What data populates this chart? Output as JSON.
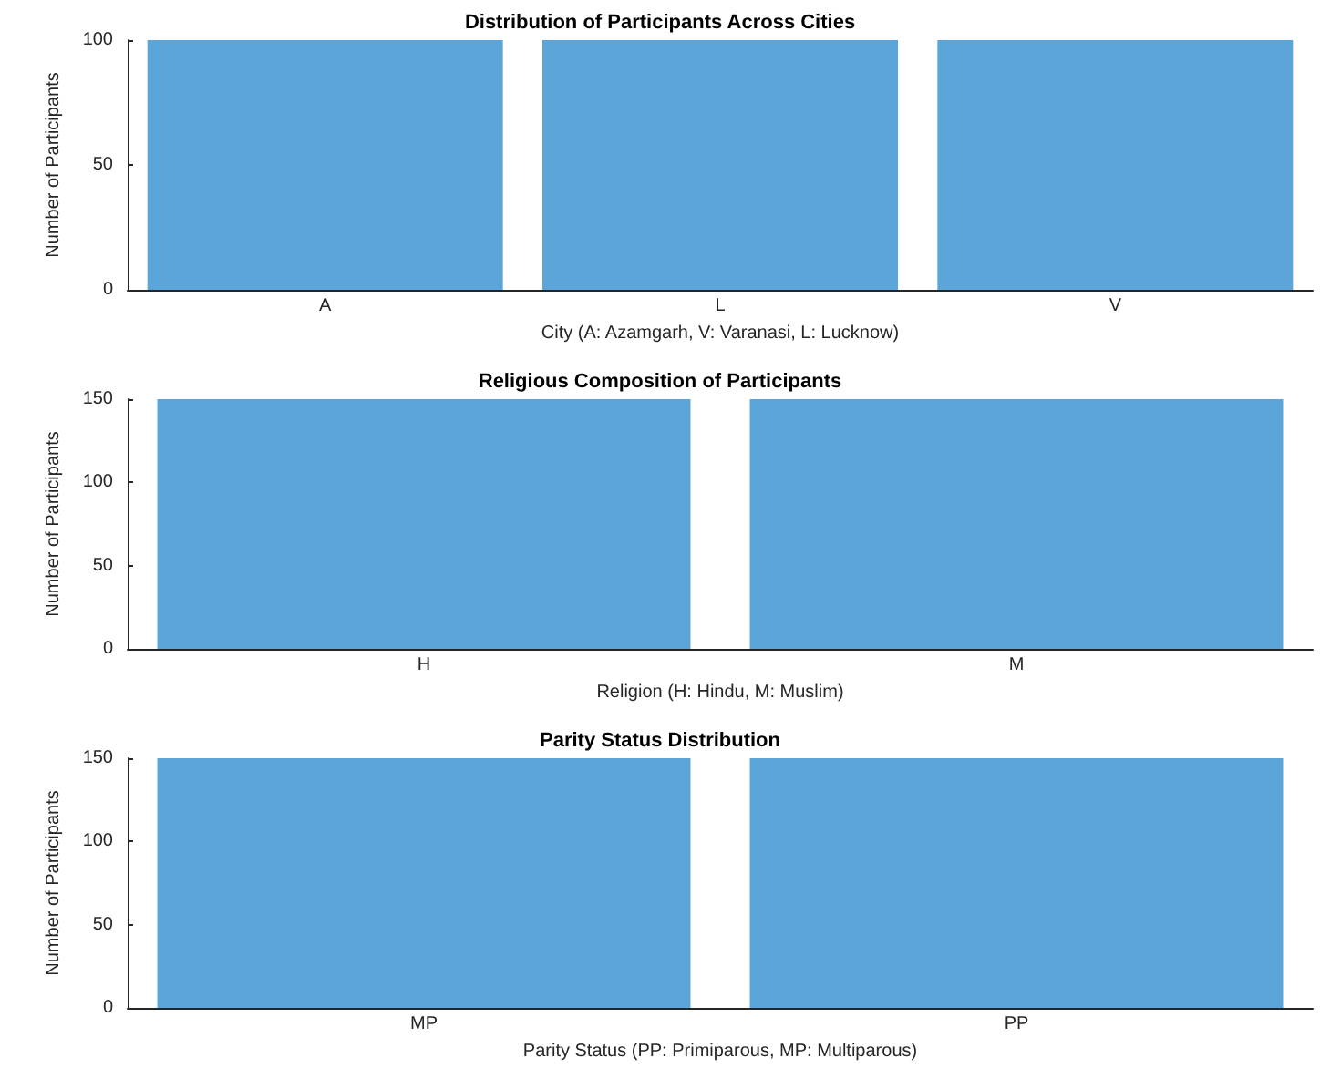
{
  "chart_data": [
    {
      "type": "bar",
      "title": "Distribution of Participants Across Cities",
      "xlabel": "City (A: Azamgarh, V: Varanasi, L: Lucknow)",
      "ylabel": "Number of Participants",
      "categories": [
        "A",
        "L",
        "V"
      ],
      "values": [
        100,
        100,
        100
      ],
      "color": "#5ca5d8",
      "ylim": [
        0,
        100
      ],
      "yticks": [
        0,
        50,
        100
      ],
      "grid": false
    },
    {
      "type": "bar",
      "title": "Religious Composition of Participants",
      "xlabel": "Religion (H: Hindu, M: Muslim)",
      "ylabel": "Number of Participants",
      "categories": [
        "H",
        "M"
      ],
      "values": [
        150,
        150
      ],
      "color": "#5ca5d8",
      "ylim": [
        0,
        150
      ],
      "yticks": [
        0,
        50,
        100,
        150
      ],
      "grid": false
    },
    {
      "type": "bar",
      "title": "Parity Status Distribution",
      "xlabel": "Parity Status (PP: Primiparous, MP: Multiparous)",
      "ylabel": "Number of Participants",
      "categories": [
        "MP",
        "PP"
      ],
      "values": [
        150,
        150
      ],
      "color": "#5ca5d8",
      "ylim": [
        0,
        150
      ],
      "yticks": [
        0,
        50,
        100,
        150
      ],
      "grid": false
    }
  ]
}
